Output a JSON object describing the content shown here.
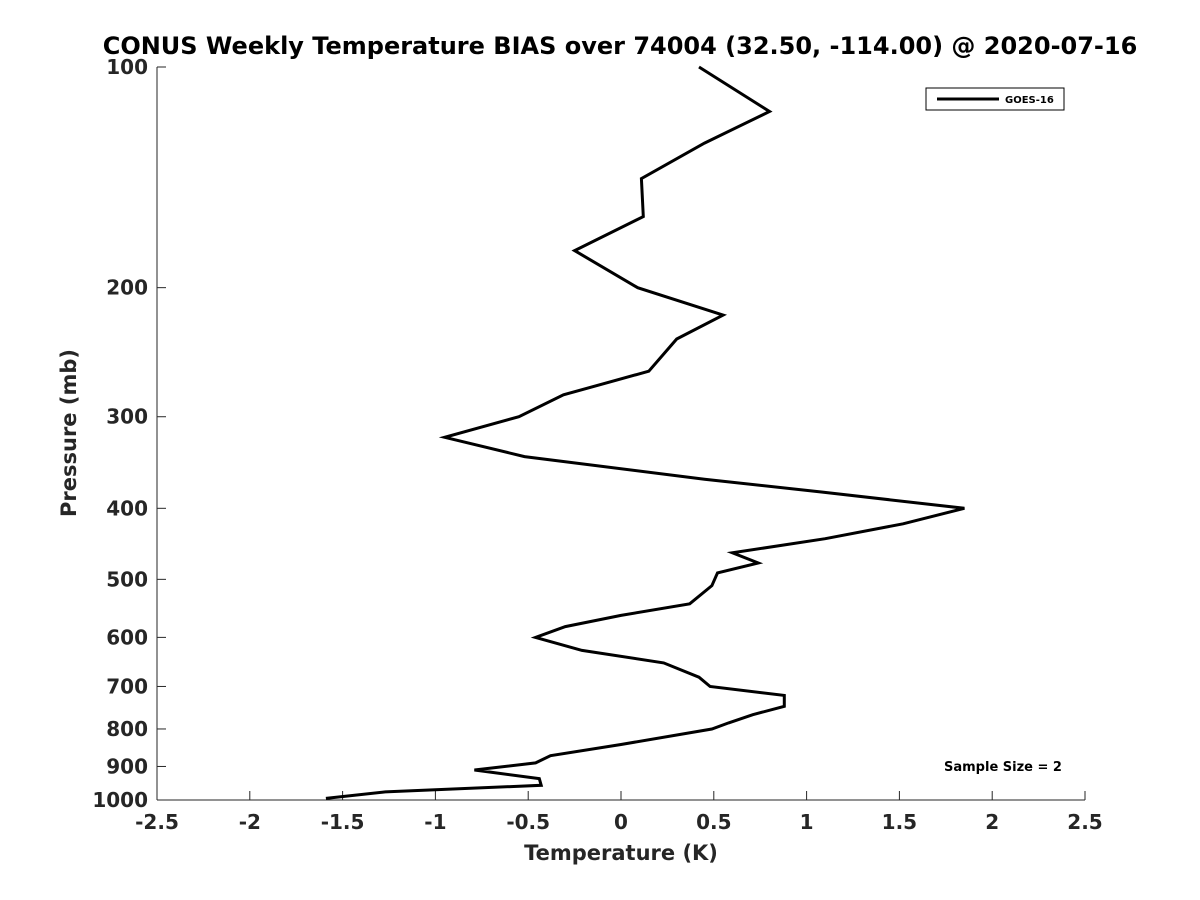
{
  "chart_data": {
    "type": "line",
    "title": "CONUS Weekly Temperature BIAS over 74004 (32.50, -114.00) @ 2020-07-16",
    "xlabel": "Temperature (K)",
    "ylabel": "Pressure (mb)",
    "xlim": [
      -2.5,
      2.5
    ],
    "ylim": [
      1000,
      100
    ],
    "yscale": "log",
    "y_reversed": true,
    "x_ticks": [
      -2.5,
      -2,
      -1.5,
      -1,
      -0.5,
      0,
      0.5,
      1,
      1.5,
      2,
      2.5
    ],
    "x_tick_labels": [
      "-2.5",
      "-2",
      "-1.5",
      "-1",
      "-0.5",
      "0",
      "0.5",
      "1",
      "1.5",
      "2",
      "2.5"
    ],
    "y_ticks": [
      100,
      200,
      300,
      400,
      500,
      600,
      700,
      800,
      900,
      1000
    ],
    "y_tick_labels": [
      "100",
      "200",
      "300",
      "400",
      "500",
      "600",
      "700",
      "800",
      "900",
      "1000"
    ],
    "grid": false,
    "legend_position": "top-right",
    "annotation": "Sample Size = 2",
    "series": [
      {
        "name": "GOES-16",
        "color": "#000000",
        "x": [
          0.42,
          0.8,
          0.45,
          0.11,
          0.12,
          -0.25,
          0.09,
          0.55,
          0.3,
          0.15,
          -0.31,
          -0.55,
          -0.95,
          -0.52,
          0.45,
          1.08,
          1.85,
          1.52,
          1.1,
          0.6,
          0.74,
          0.52,
          0.49,
          0.37,
          0.0,
          -0.3,
          -0.46,
          -0.21,
          0.23,
          0.42,
          0.48,
          0.88,
          0.88,
          0.71,
          0.58,
          0.49,
          0.0,
          -0.38,
          -0.46,
          -0.79,
          -0.44,
          -0.43,
          -1.27,
          -1.59
        ],
        "y": [
          100,
          115,
          127,
          142,
          160,
          178,
          200,
          218,
          235,
          260,
          280,
          300,
          320,
          340,
          365,
          380,
          400,
          420,
          440,
          460,
          475,
          490,
          510,
          540,
          560,
          580,
          600,
          625,
          650,
          680,
          700,
          720,
          745,
          765,
          785,
          800,
          840,
          870,
          890,
          910,
          935,
          955,
          975,
          995
        ]
      }
    ]
  }
}
